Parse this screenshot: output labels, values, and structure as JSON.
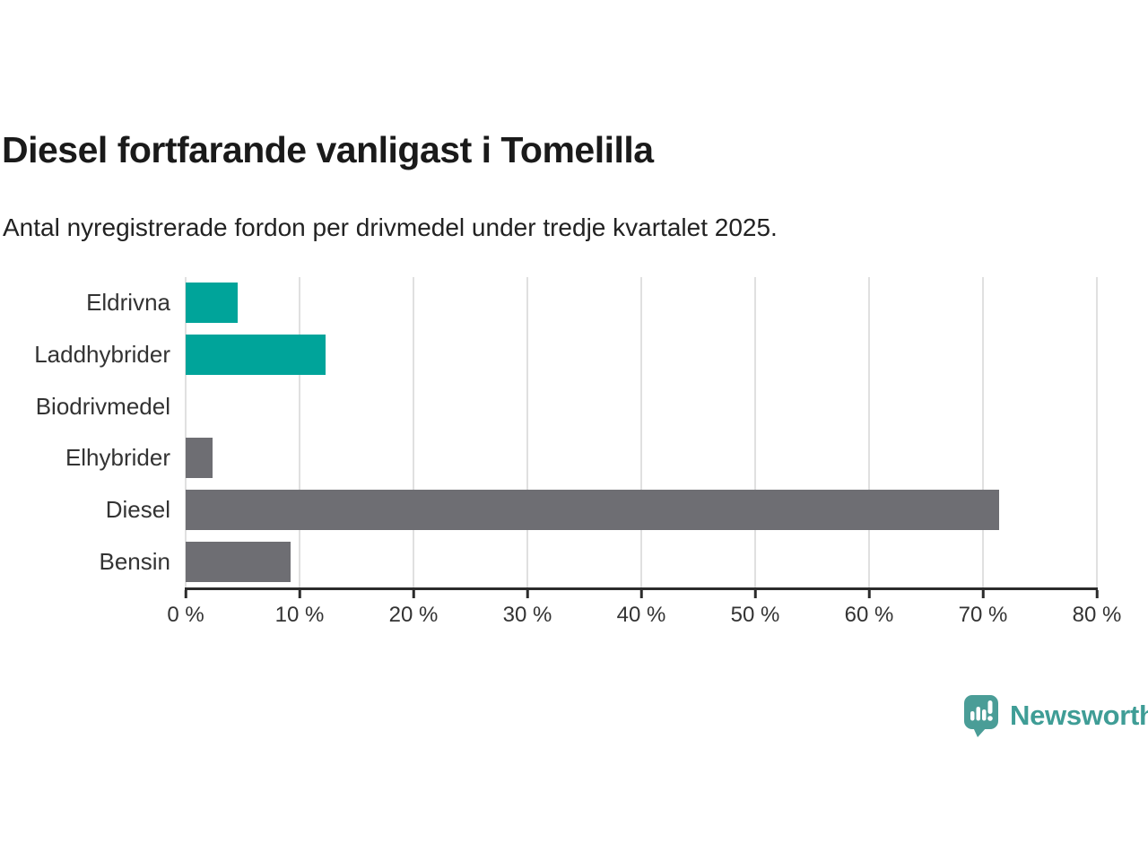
{
  "header": {
    "title": "Diesel fortfarande vanligast i Tomelilla",
    "subtitle": "Antal nyregistrerade fordon per drivmedel under tredje kvartalet 2025."
  },
  "chart_data": {
    "type": "bar",
    "orientation": "horizontal",
    "title": "Diesel fortfarande vanligast i Tomelilla",
    "subtitle": "Antal nyregistrerade fordon per drivmedel under tredje kvartalet 2025.",
    "categories": [
      "Eldrivna",
      "Laddhybrider",
      "Biodrivmedel",
      "Elhybrider",
      "Diesel",
      "Bensin"
    ],
    "values": [
      4.6,
      12.3,
      0,
      2.4,
      71.4,
      9.2
    ],
    "unit": "%",
    "bar_colors": [
      "#00a49a",
      "#00a49a",
      "#00a49a",
      "#6e6e73",
      "#6e6e73",
      "#6e6e73"
    ],
    "xlim": [
      0,
      80
    ],
    "x_ticks": [
      0,
      10,
      20,
      30,
      40,
      50,
      60,
      70,
      80
    ],
    "x_tick_labels": [
      "0 %",
      "10 %",
      "20 %",
      "30 %",
      "40 %",
      "50 %",
      "60 %",
      "70 %",
      "80 %"
    ],
    "grid": true,
    "legend": false
  },
  "colors": {
    "accent_teal": "#00a49a",
    "neutral_gray": "#6e6e73",
    "gridline": "#e0e0e0",
    "axis": "#2b2b2b",
    "text": "#333333",
    "title_text": "#1a1a1a",
    "logo_teal": "#4a9d97",
    "brand_text": "#3f9d96"
  },
  "footer": {
    "brand": "Newsworthy",
    "logo_icon": "newsworthy-speech-bubble-bar-chart-icon"
  }
}
